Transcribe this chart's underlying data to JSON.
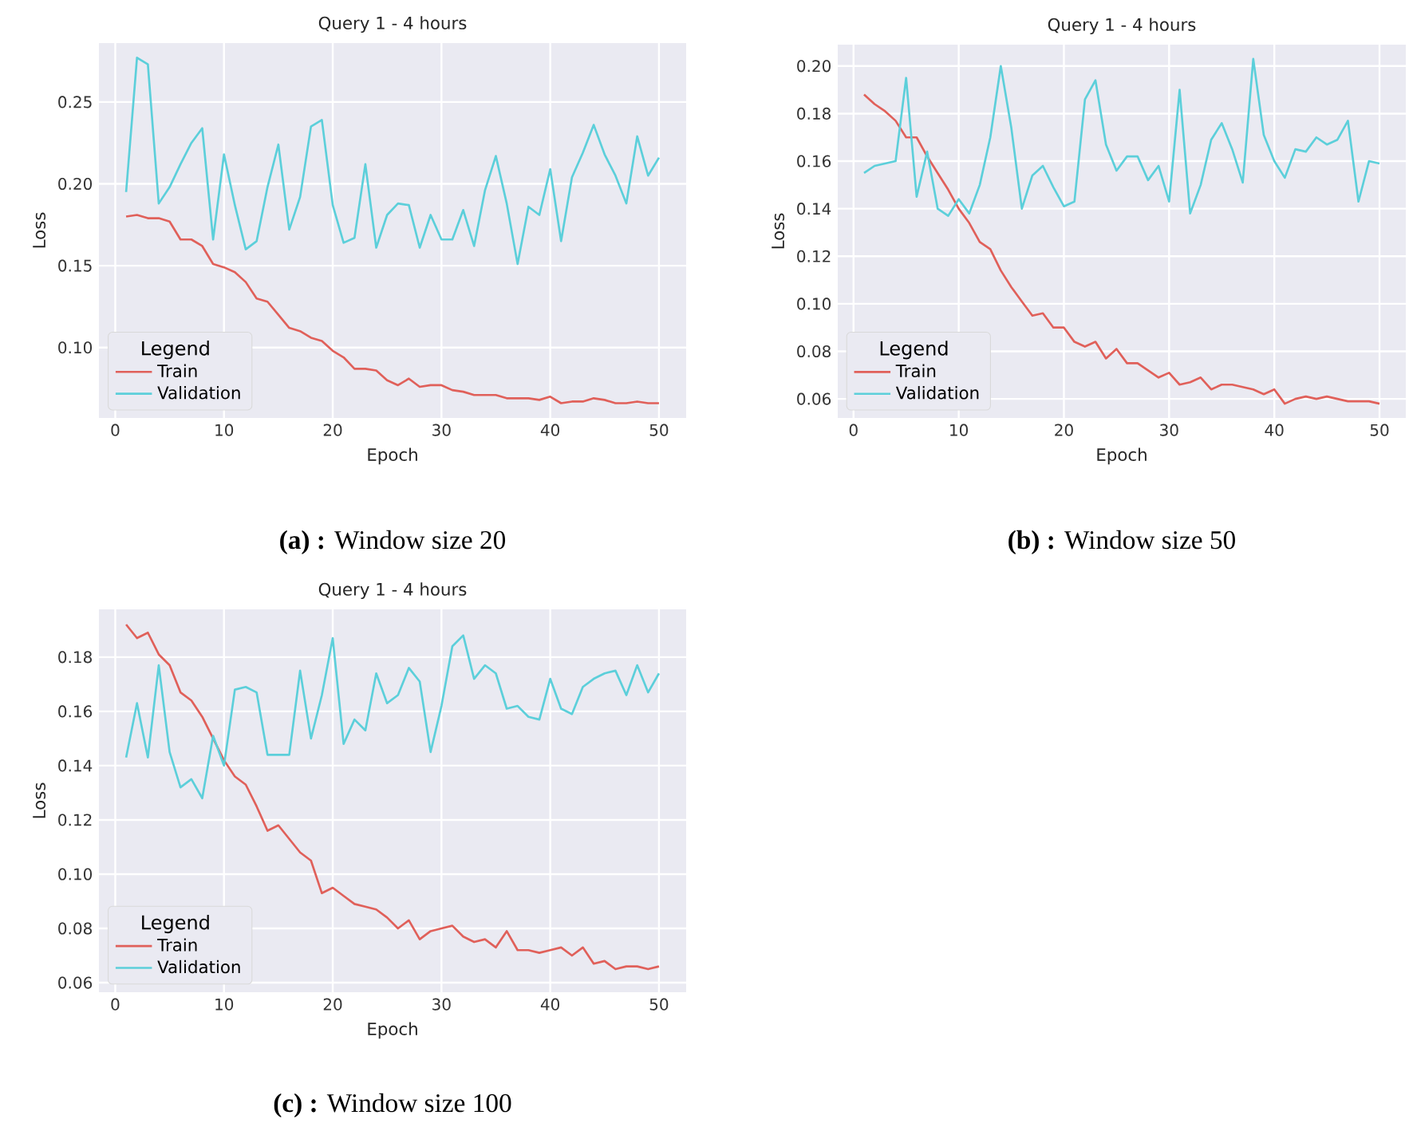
{
  "chart_data": [
    {
      "type": "line",
      "title": "Query 1 - 4 hours",
      "xlabel": "Epoch",
      "ylabel": "Loss",
      "legend_title": "Legend",
      "legend": "bottom left",
      "grid": true,
      "xlim": [
        -1.5,
        52.5
      ],
      "ylim": [
        0.057,
        0.286
      ],
      "xticks": [
        0,
        10,
        20,
        30,
        40,
        50
      ],
      "yticks": [
        {
          "value": 0.1,
          "label": "0.10"
        },
        {
          "value": 0.15,
          "label": "0.15"
        },
        {
          "value": 0.2,
          "label": "0.20"
        },
        {
          "value": 0.25,
          "label": "0.25"
        }
      ],
      "x": [
        1,
        2,
        3,
        4,
        5,
        6,
        7,
        8,
        9,
        10,
        11,
        12,
        13,
        14,
        15,
        16,
        17,
        18,
        19,
        20,
        21,
        22,
        23,
        24,
        25,
        26,
        27,
        28,
        29,
        30,
        31,
        32,
        33,
        34,
        35,
        36,
        37,
        38,
        39,
        40,
        41,
        42,
        43,
        44,
        45,
        46,
        47,
        48,
        49,
        50
      ],
      "series": [
        {
          "name": "Train",
          "color": "#e0605a",
          "values": [
            0.18,
            0.181,
            0.179,
            0.179,
            0.177,
            0.166,
            0.166,
            0.162,
            0.151,
            0.149,
            0.146,
            0.14,
            0.13,
            0.128,
            0.12,
            0.112,
            0.11,
            0.106,
            0.104,
            0.098,
            0.094,
            0.087,
            0.087,
            0.086,
            0.08,
            0.077,
            0.081,
            0.076,
            0.077,
            0.077,
            0.074,
            0.073,
            0.071,
            0.071,
            0.071,
            0.069,
            0.069,
            0.069,
            0.068,
            0.07,
            0.066,
            0.067,
            0.067,
            0.069,
            0.068,
            0.066,
            0.066,
            0.067,
            0.066,
            0.066
          ]
        },
        {
          "name": "Validation",
          "color": "#5ccfda",
          "values": [
            0.195,
            0.277,
            0.273,
            0.188,
            0.198,
            0.212,
            0.225,
            0.234,
            0.166,
            0.218,
            0.187,
            0.16,
            0.165,
            0.198,
            0.224,
            0.172,
            0.192,
            0.235,
            0.239,
            0.187,
            0.164,
            0.167,
            0.212,
            0.161,
            0.181,
            0.188,
            0.187,
            0.161,
            0.181,
            0.166,
            0.166,
            0.184,
            0.162,
            0.196,
            0.217,
            0.188,
            0.151,
            0.186,
            0.181,
            0.209,
            0.165,
            0.204,
            0.219,
            0.236,
            0.218,
            0.205,
            0.188,
            0.229,
            0.205,
            0.216
          ]
        }
      ],
      "annotations": [
        "**(a) :** Window size 20"
      ]
    },
    {
      "type": "line",
      "title": "Query 1 - 4 hours",
      "xlabel": "Epoch",
      "ylabel": "Loss",
      "legend_title": "Legend",
      "legend": "bottom left",
      "grid": true,
      "xlim": [
        -1.5,
        52.5
      ],
      "ylim": [
        0.052,
        0.209
      ],
      "xticks": [
        0,
        10,
        20,
        30,
        40,
        50
      ],
      "yticks": [
        {
          "value": 0.06,
          "label": "0.06"
        },
        {
          "value": 0.08,
          "label": "0.08"
        },
        {
          "value": 0.1,
          "label": "0.10"
        },
        {
          "value": 0.12,
          "label": "0.12"
        },
        {
          "value": 0.14,
          "label": "0.14"
        },
        {
          "value": 0.16,
          "label": "0.16"
        },
        {
          "value": 0.18,
          "label": "0.18"
        },
        {
          "value": 0.2,
          "label": "0.20"
        }
      ],
      "x": [
        1,
        2,
        3,
        4,
        5,
        6,
        7,
        8,
        9,
        10,
        11,
        12,
        13,
        14,
        15,
        16,
        17,
        18,
        19,
        20,
        21,
        22,
        23,
        24,
        25,
        26,
        27,
        28,
        29,
        30,
        31,
        32,
        33,
        34,
        35,
        36,
        37,
        38,
        39,
        40,
        41,
        42,
        43,
        44,
        45,
        46,
        47,
        48,
        49,
        50
      ],
      "series": [
        {
          "name": "Train",
          "color": "#e0605a",
          "values": [
            0.188,
            0.184,
            0.181,
            0.177,
            0.17,
            0.17,
            0.162,
            0.155,
            0.148,
            0.14,
            0.134,
            0.126,
            0.123,
            0.114,
            0.107,
            0.101,
            0.095,
            0.096,
            0.09,
            0.09,
            0.084,
            0.082,
            0.084,
            0.077,
            0.081,
            0.075,
            0.075,
            0.072,
            0.069,
            0.071,
            0.066,
            0.067,
            0.069,
            0.064,
            0.066,
            0.066,
            0.065,
            0.064,
            0.062,
            0.064,
            0.058,
            0.06,
            0.061,
            0.06,
            0.061,
            0.06,
            0.059,
            0.059,
            0.059,
            0.058
          ]
        },
        {
          "name": "Validation",
          "color": "#5ccfda",
          "values": [
            0.155,
            0.158,
            0.159,
            0.16,
            0.195,
            0.145,
            0.164,
            0.14,
            0.137,
            0.144,
            0.138,
            0.15,
            0.17,
            0.2,
            0.174,
            0.14,
            0.154,
            0.158,
            0.149,
            0.141,
            0.143,
            0.186,
            0.194,
            0.167,
            0.156,
            0.162,
            0.162,
            0.152,
            0.158,
            0.143,
            0.19,
            0.138,
            0.15,
            0.169,
            0.176,
            0.165,
            0.151,
            0.203,
            0.171,
            0.16,
            0.153,
            0.165,
            0.164,
            0.17,
            0.167,
            0.169,
            0.177,
            0.143,
            0.16,
            0.159
          ]
        }
      ],
      "annotations": [
        "**(b) :** Window size 50"
      ]
    },
    {
      "type": "line",
      "title": "Query 1 - 4 hours",
      "xlabel": "Epoch",
      "ylabel": "Loss",
      "legend_title": "Legend",
      "legend": "bottom left",
      "grid": true,
      "xlim": [
        -1.5,
        52.5
      ],
      "ylim": [
        0.0565,
        0.1976
      ],
      "xticks": [
        0,
        10,
        20,
        30,
        40,
        50
      ],
      "yticks": [
        {
          "value": 0.06,
          "label": "0.06"
        },
        {
          "value": 0.08,
          "label": "0.08"
        },
        {
          "value": 0.1,
          "label": "0.10"
        },
        {
          "value": 0.12,
          "label": "0.12"
        },
        {
          "value": 0.14,
          "label": "0.14"
        },
        {
          "value": 0.16,
          "label": "0.16"
        },
        {
          "value": 0.18,
          "label": "0.18"
        }
      ],
      "x": [
        1,
        2,
        3,
        4,
        5,
        6,
        7,
        8,
        9,
        10,
        11,
        12,
        13,
        14,
        15,
        16,
        17,
        18,
        19,
        20,
        21,
        22,
        23,
        24,
        25,
        26,
        27,
        28,
        29,
        30,
        31,
        32,
        33,
        34,
        35,
        36,
        37,
        38,
        39,
        40,
        41,
        42,
        43,
        44,
        45,
        46,
        47,
        48,
        49,
        50
      ],
      "series": [
        {
          "name": "Train",
          "color": "#e0605a",
          "values": [
            0.192,
            0.187,
            0.189,
            0.181,
            0.177,
            0.167,
            0.164,
            0.158,
            0.15,
            0.142,
            0.136,
            0.133,
            0.125,
            0.116,
            0.118,
            0.113,
            0.108,
            0.105,
            0.093,
            0.095,
            0.092,
            0.089,
            0.088,
            0.087,
            0.084,
            0.08,
            0.083,
            0.076,
            0.079,
            0.08,
            0.081,
            0.077,
            0.075,
            0.076,
            0.073,
            0.079,
            0.072,
            0.072,
            0.071,
            0.072,
            0.073,
            0.07,
            0.073,
            0.067,
            0.068,
            0.065,
            0.066,
            0.066,
            0.065,
            0.066
          ]
        },
        {
          "name": "Validation",
          "color": "#5ccfda",
          "values": [
            0.143,
            0.163,
            0.143,
            0.177,
            0.145,
            0.132,
            0.135,
            0.128,
            0.151,
            0.14,
            0.168,
            0.169,
            0.167,
            0.144,
            0.144,
            0.144,
            0.175,
            0.15,
            0.166,
            0.187,
            0.148,
            0.157,
            0.153,
            0.174,
            0.163,
            0.166,
            0.176,
            0.171,
            0.145,
            0.162,
            0.184,
            0.188,
            0.172,
            0.177,
            0.174,
            0.161,
            0.162,
            0.158,
            0.157,
            0.172,
            0.161,
            0.159,
            0.169,
            0.172,
            0.174,
            0.175,
            0.166,
            0.177,
            0.167,
            0.174
          ]
        }
      ],
      "annotations": [
        "**(c) :** Window size 100"
      ]
    }
  ]
}
